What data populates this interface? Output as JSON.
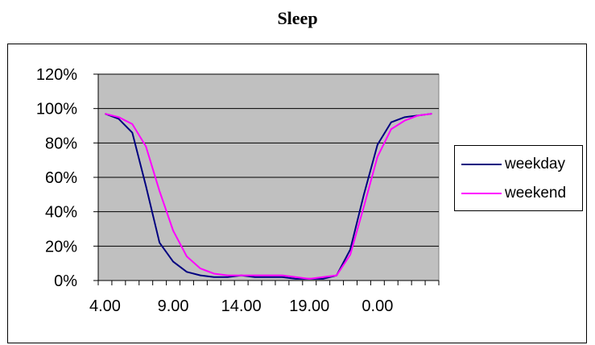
{
  "chart_data": {
    "type": "line",
    "title": "Sleep",
    "xlabel": "",
    "ylabel": "",
    "x_tick_labels": [
      "4.00",
      "9.00",
      "14.00",
      "19.00",
      "0.00"
    ],
    "y_tick_labels": [
      "0%",
      "20%",
      "40%",
      "60%",
      "80%",
      "100%",
      "120%"
    ],
    "ylim": [
      0,
      1.2
    ],
    "grid": true,
    "legend_position": "right",
    "x": [
      "4.00",
      "5.00",
      "6.00",
      "7.00",
      "8.00",
      "9.00",
      "10.00",
      "11.00",
      "12.00",
      "13.00",
      "14.00",
      "15.00",
      "16.00",
      "17.00",
      "18.00",
      "19.00",
      "20.00",
      "21.00",
      "22.00",
      "23.00",
      "0.00",
      "1.00",
      "2.00",
      "3.00",
      "4.00"
    ],
    "series": [
      {
        "name": "weekday",
        "color": "#000080",
        "values": [
          0.97,
          0.94,
          0.86,
          0.55,
          0.22,
          0.11,
          0.05,
          0.03,
          0.02,
          0.02,
          0.03,
          0.02,
          0.02,
          0.02,
          0.01,
          0.01,
          0.01,
          0.03,
          0.18,
          0.5,
          0.79,
          0.92,
          0.95,
          0.96,
          0.97
        ]
      },
      {
        "name": "weekend",
        "color": "#ff00ff",
        "values": [
          0.97,
          0.95,
          0.91,
          0.78,
          0.52,
          0.29,
          0.14,
          0.07,
          0.04,
          0.03,
          0.03,
          0.03,
          0.03,
          0.03,
          0.02,
          0.01,
          0.02,
          0.03,
          0.15,
          0.43,
          0.72,
          0.88,
          0.93,
          0.96,
          0.97
        ]
      }
    ]
  }
}
